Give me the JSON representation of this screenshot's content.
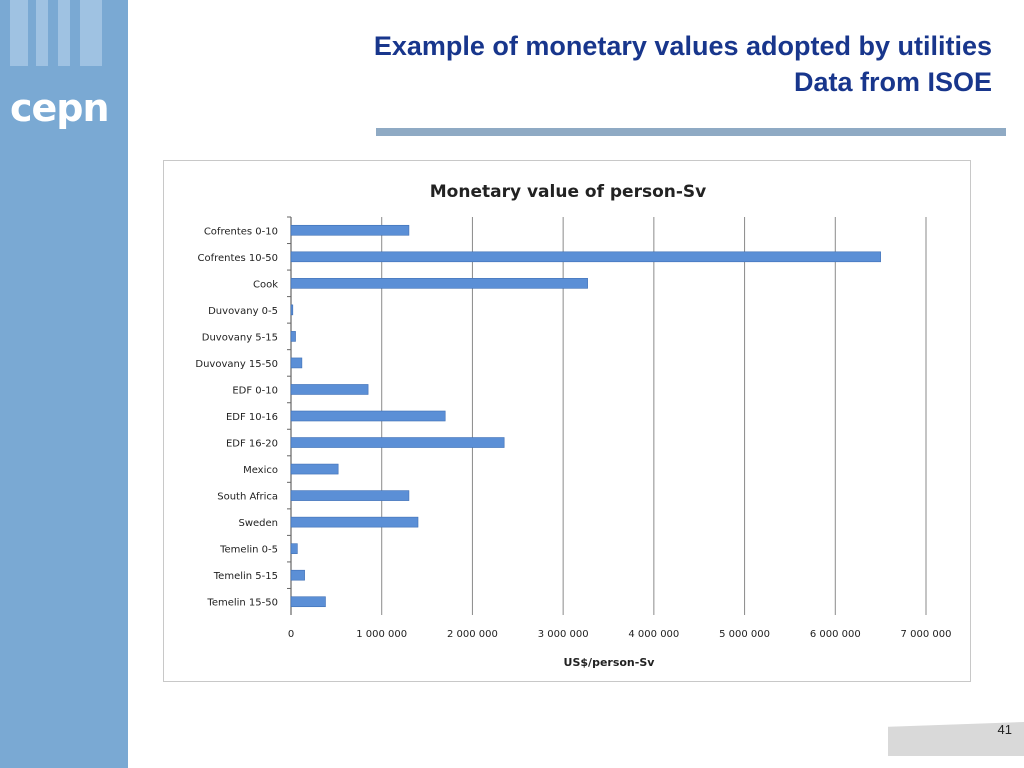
{
  "branding": {
    "logo_text": "cepn"
  },
  "header": {
    "title_line1": "Example of monetary values adopted by utilities",
    "title_line2": "Data from ISOE"
  },
  "footer": {
    "page_number": "41"
  },
  "colors": {
    "sidebar": "#7aa9d3",
    "title": "#18368c",
    "bar": "#5b8fd6"
  },
  "chart_data": {
    "type": "bar",
    "orientation": "horizontal",
    "title": "Monetary value of person-Sv",
    "xlabel": "US$/person-Sv",
    "ylabel": "",
    "xlim": [
      0,
      7000000
    ],
    "grid": true,
    "legend": "none",
    "categories": [
      "Cofrentes 0-10",
      "Cofrentes 10-50",
      "Cook",
      "Duvovany 0-5",
      "Duvovany 5-15",
      "Duvovany 15-50",
      "EDF 0-10",
      "EDF 10-16",
      "EDF 16-20",
      "Mexico",
      "South Africa",
      "Sweden",
      "Temelin 0-5",
      "Temelin 5-15",
      "Temelin 15-50"
    ],
    "values": [
      1300000,
      6500000,
      3270000,
      20000,
      50000,
      120000,
      850000,
      1700000,
      2350000,
      520000,
      1300000,
      1400000,
      70000,
      150000,
      380000
    ],
    "x_ticks": [
      0,
      1000000,
      2000000,
      3000000,
      4000000,
      5000000,
      6000000,
      7000000
    ],
    "x_tick_labels": [
      "0",
      "1 000 000",
      "2 000 000",
      "3 000 000",
      "4 000 000",
      "5 000 000",
      "6 000 000",
      "7 000 000"
    ]
  }
}
